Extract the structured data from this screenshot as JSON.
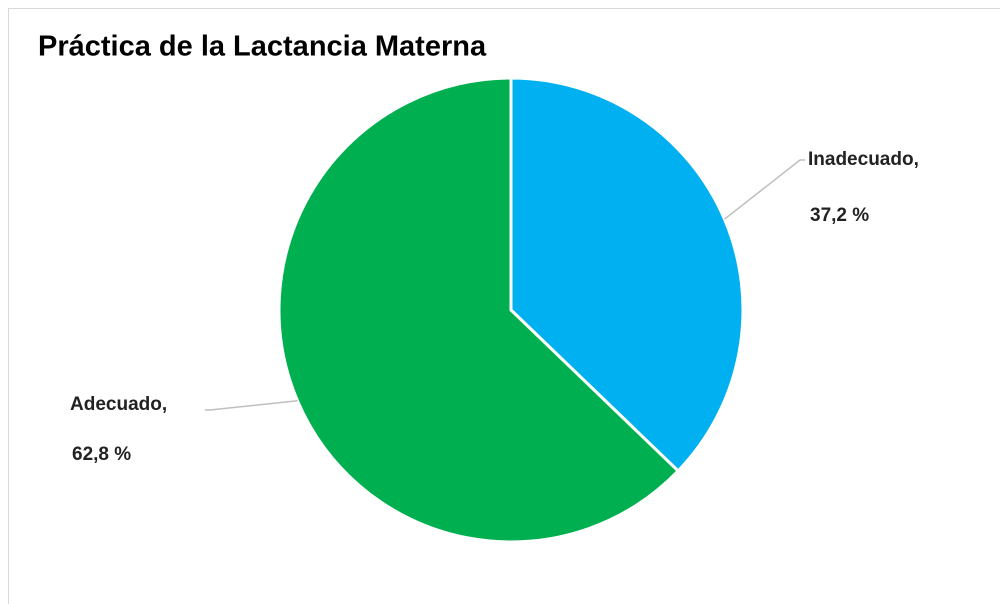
{
  "chart_data": {
    "type": "pie",
    "title": "Práctica de la Lactancia Materna",
    "categories": [
      "Inadecuado,",
      "Adecuado,"
    ],
    "values": [
      37.2,
      62.8
    ],
    "value_labels": [
      "37,2 %",
      "62,8 %"
    ],
    "colors": [
      "#00b0f0",
      "#00b050"
    ]
  }
}
